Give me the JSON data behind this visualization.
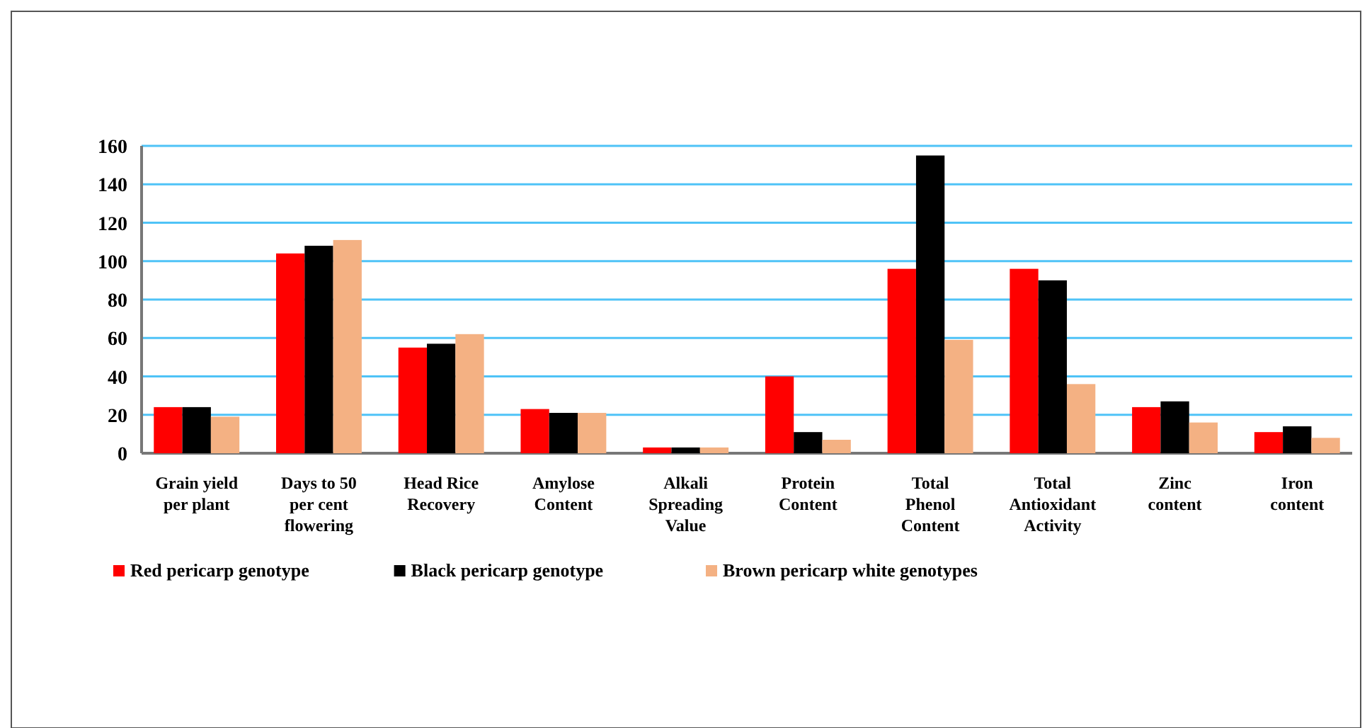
{
  "chart_data": {
    "type": "bar",
    "categories": [
      "Grain yield per plant",
      "Days to 50 per cent flowering",
      "Head Rice Recovery",
      "Amylose Content",
      "Alkali Spreading Value",
      "Protein Content",
      "Total Phenol Content",
      "Total Antioxidant Activity",
      "Zinc content",
      "Iron content"
    ],
    "series": [
      {
        "name": "Red pericarp genotype",
        "color": "#ff0000",
        "values": [
          24,
          104,
          55,
          23,
          3,
          40,
          96,
          96,
          24,
          11
        ]
      },
      {
        "name": "Black pericarp  genotype",
        "color": "#000000",
        "values": [
          24,
          108,
          57,
          21,
          3,
          11,
          155,
          90,
          27,
          14
        ]
      },
      {
        "name": "Brown pericarp  white  genotypes",
        "color": "#f4b183",
        "values": [
          19,
          111,
          62,
          21,
          3,
          7,
          59,
          36,
          16,
          8
        ]
      }
    ],
    "ylim": [
      0,
      160
    ],
    "yticks": [
      0,
      20,
      40,
      60,
      80,
      100,
      120,
      140,
      160
    ],
    "grid": "y",
    "legend": "bottom left"
  }
}
